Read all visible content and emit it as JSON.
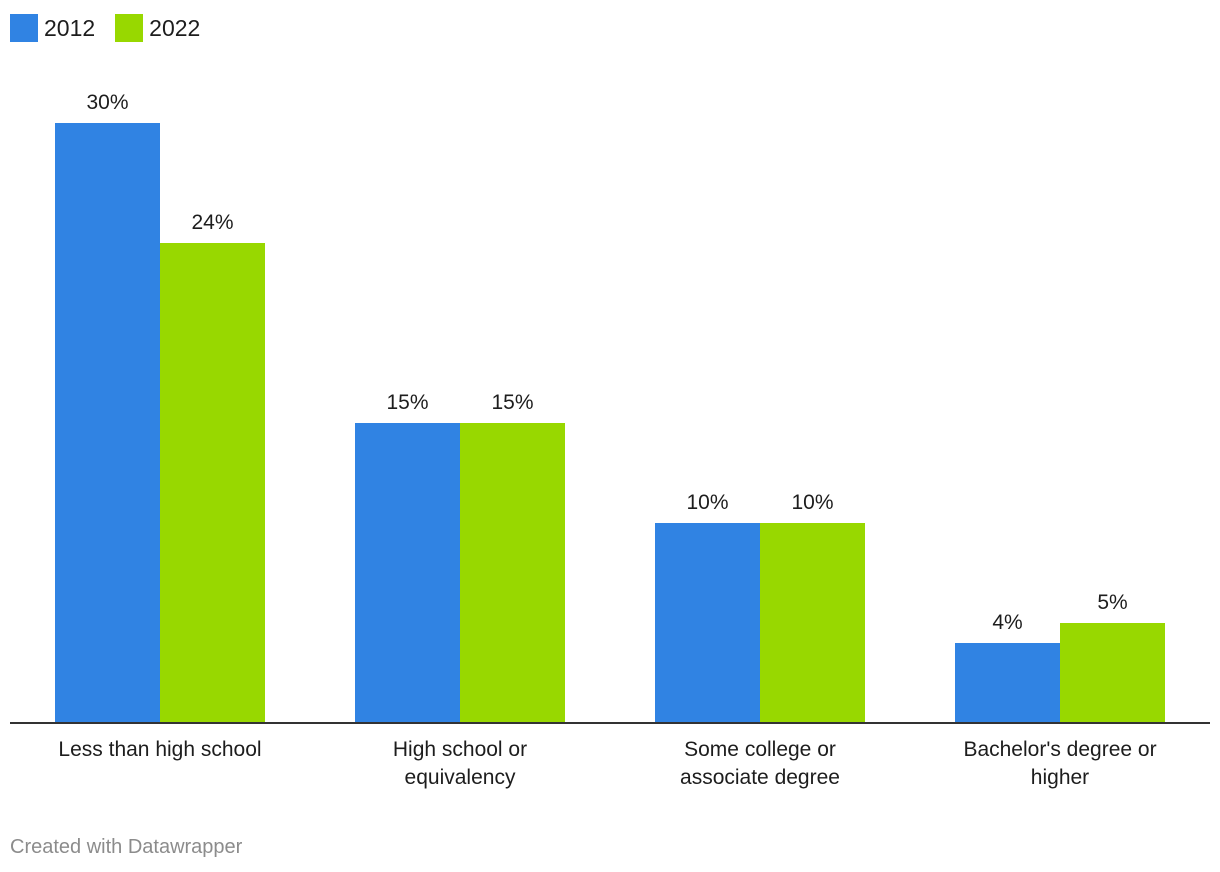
{
  "chart_data": {
    "type": "bar",
    "categories": [
      [
        "Less than high school"
      ],
      [
        "High school or",
        "equivalency"
      ],
      [
        "Some college or",
        "associate degree"
      ],
      [
        "Bachelor's degree or",
        "higher"
      ]
    ],
    "series": [
      {
        "name": "2012",
        "color": "#3083e3",
        "values": [
          30,
          15,
          10,
          4
        ],
        "labels": [
          "30%",
          "15%",
          "10%",
          "4%"
        ]
      },
      {
        "name": "2022",
        "color": "#98d800",
        "values": [
          24,
          15,
          10,
          5
        ],
        "labels": [
          "24%",
          "15%",
          "10%",
          "5%"
        ]
      }
    ],
    "ylim": [
      0,
      30
    ],
    "legend_position": "top-left",
    "grid": false
  },
  "footer": "Created with Datawrapper"
}
